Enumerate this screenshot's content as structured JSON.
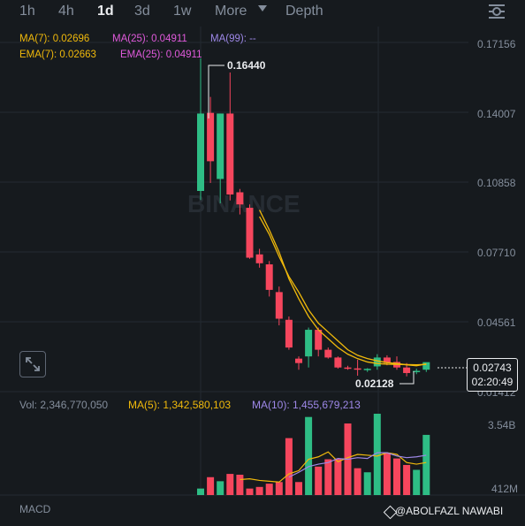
{
  "toolbar": {
    "tabs": [
      {
        "label": "1h",
        "active": false
      },
      {
        "label": "4h",
        "active": false
      },
      {
        "label": "1d",
        "active": true
      },
      {
        "label": "3d",
        "active": false
      },
      {
        "label": "1w",
        "active": false
      },
      {
        "label": "More",
        "active": false
      },
      {
        "label": "Depth",
        "active": false
      }
    ],
    "settings_icon": "settings-sliders-icon"
  },
  "indicators": {
    "ma7": "MA(7): 0.02696",
    "ma25": "MA(25): 0.04911",
    "ma99": "MA(99): --",
    "ema7": "EMA(7): 0.02663",
    "ema25": "EMA(25): 0.04911"
  },
  "colors": {
    "up": "#2ebd85",
    "down": "#f6465d",
    "ma7": "#f0b90b",
    "ma25": "#e05adb",
    "ma99": "#9e88e8",
    "ema7": "#f0b90b",
    "ema25": "#e05adb",
    "background": "#161a1e",
    "grid": "#242a31"
  },
  "price_axis": [
    "0.17156",
    "0.14007",
    "0.10858",
    "0.07710",
    "0.04561",
    "0.01412"
  ],
  "high_callout": "0.16440",
  "low_callout": "0.02128",
  "last_price": {
    "value": "0.02743",
    "countdown": "02:20:49"
  },
  "watermark": "BINANCE",
  "volume": {
    "vol": "Vol: 2,346,770,050",
    "ma5": "MA(5): 1,342,580,103",
    "ma10": "MA(10): 1,455,679,213",
    "axis_top": "3.54B",
    "axis_bottom": "412M"
  },
  "macd_label": "MACD",
  "credit": "@ABOLFAZL NAWABI",
  "chart_data": {
    "type": "candlestick",
    "y_axis_ticks": [
      0.17156,
      0.14007,
      0.10858,
      0.0771,
      0.04561,
      0.01412
    ],
    "candles": [
      {
        "o": 0.1046,
        "h": 0.1644,
        "l": 0.1005,
        "c": 0.1395
      },
      {
        "o": 0.1398,
        "h": 0.147,
        "l": 0.1082,
        "c": 0.118
      },
      {
        "o": 0.11,
        "h": 0.1395,
        "l": 0.099,
        "c": 0.1395
      },
      {
        "o": 0.1395,
        "h": 0.158,
        "l": 0.1003,
        "c": 0.103
      },
      {
        "o": 0.104,
        "h": 0.1055,
        "l": 0.094,
        "c": 0.0985
      },
      {
        "o": 0.097,
        "h": 0.0985,
        "l": 0.074,
        "c": 0.0745
      },
      {
        "o": 0.076,
        "h": 0.0785,
        "l": 0.07,
        "c": 0.072
      },
      {
        "o": 0.0715,
        "h": 0.073,
        "l": 0.057,
        "c": 0.06
      },
      {
        "o": 0.059,
        "h": 0.0615,
        "l": 0.044,
        "c": 0.047
      },
      {
        "o": 0.0465,
        "h": 0.048,
        "l": 0.033,
        "c": 0.034
      },
      {
        "o": 0.029,
        "h": 0.03,
        "l": 0.024,
        "c": 0.027
      },
      {
        "o": 0.03,
        "h": 0.043,
        "l": 0.025,
        "c": 0.042
      },
      {
        "o": 0.042,
        "h": 0.043,
        "l": 0.03,
        "c": 0.033
      },
      {
        "o": 0.033,
        "h": 0.034,
        "l": 0.029,
        "c": 0.0295
      },
      {
        "o": 0.0295,
        "h": 0.03,
        "l": 0.0245,
        "c": 0.025
      },
      {
        "o": 0.025,
        "h": 0.0258,
        "l": 0.024,
        "c": 0.0246
      },
      {
        "o": 0.0246,
        "h": 0.0285,
        "l": 0.0213,
        "c": 0.024
      },
      {
        "o": 0.024,
        "h": 0.0247,
        "l": 0.023,
        "c": 0.0244
      },
      {
        "o": 0.0255,
        "h": 0.031,
        "l": 0.024,
        "c": 0.0295
      },
      {
        "o": 0.0295,
        "h": 0.0305,
        "l": 0.026,
        "c": 0.027
      },
      {
        "o": 0.0275,
        "h": 0.03,
        "l": 0.024,
        "c": 0.025
      },
      {
        "o": 0.025,
        "h": 0.027,
        "l": 0.021,
        "c": 0.0225
      },
      {
        "o": 0.023,
        "h": 0.0245,
        "l": 0.022,
        "c": 0.0235
      },
      {
        "o": 0.024,
        "h": 0.0265,
        "l": 0.023,
        "c": 0.0274
      }
    ],
    "ma_lines": [
      {
        "name": "MA(7)",
        "start_index": 6,
        "values": [
          0.096,
          0.087,
          0.077,
          0.065,
          0.056,
          0.048,
          0.042,
          0.038,
          0.034,
          0.031,
          0.029,
          0.0275,
          0.0268,
          0.0265,
          0.0264,
          0.0263,
          0.0262,
          0.0264
        ]
      },
      {
        "name": "EMA(7)",
        "start_index": 6,
        "values": [
          0.093,
          0.085,
          0.075,
          0.066,
          0.059,
          0.051,
          0.045,
          0.041,
          0.037,
          0.033,
          0.0305,
          0.029,
          0.028,
          0.0272,
          0.0268,
          0.0262,
          0.0258,
          0.0266
        ]
      }
    ],
    "volumes_relative": [
      0.08,
      0.22,
      0.17,
      0.26,
      0.25,
      0.08,
      0.1,
      0.14,
      0.16,
      0.7,
      0.16,
      0.96,
      0.35,
      0.44,
      0.45,
      0.88,
      0.33,
      0.28,
      1.0,
      0.52,
      0.45,
      0.37,
      0.31,
      0.74
    ],
    "volume_ma_relative": [
      {
        "name": "MA(5)",
        "start_index": 4,
        "values": [
          0.19,
          0.2,
          0.18,
          0.17,
          0.16,
          0.26,
          0.3,
          0.44,
          0.47,
          0.53,
          0.41,
          0.46,
          0.5,
          0.49,
          0.48,
          0.52,
          0.5,
          0.4,
          0.38,
          0.4
        ]
      },
      {
        "name": "MA(10)",
        "start_index": 9,
        "values": [
          0.22,
          0.28,
          0.35,
          0.38,
          0.4,
          0.45,
          0.44,
          0.46,
          0.45,
          0.52,
          0.52,
          0.48,
          0.46,
          0.47,
          0.49
        ]
      }
    ],
    "volume_axis": [
      "3.54B",
      "412M"
    ]
  }
}
